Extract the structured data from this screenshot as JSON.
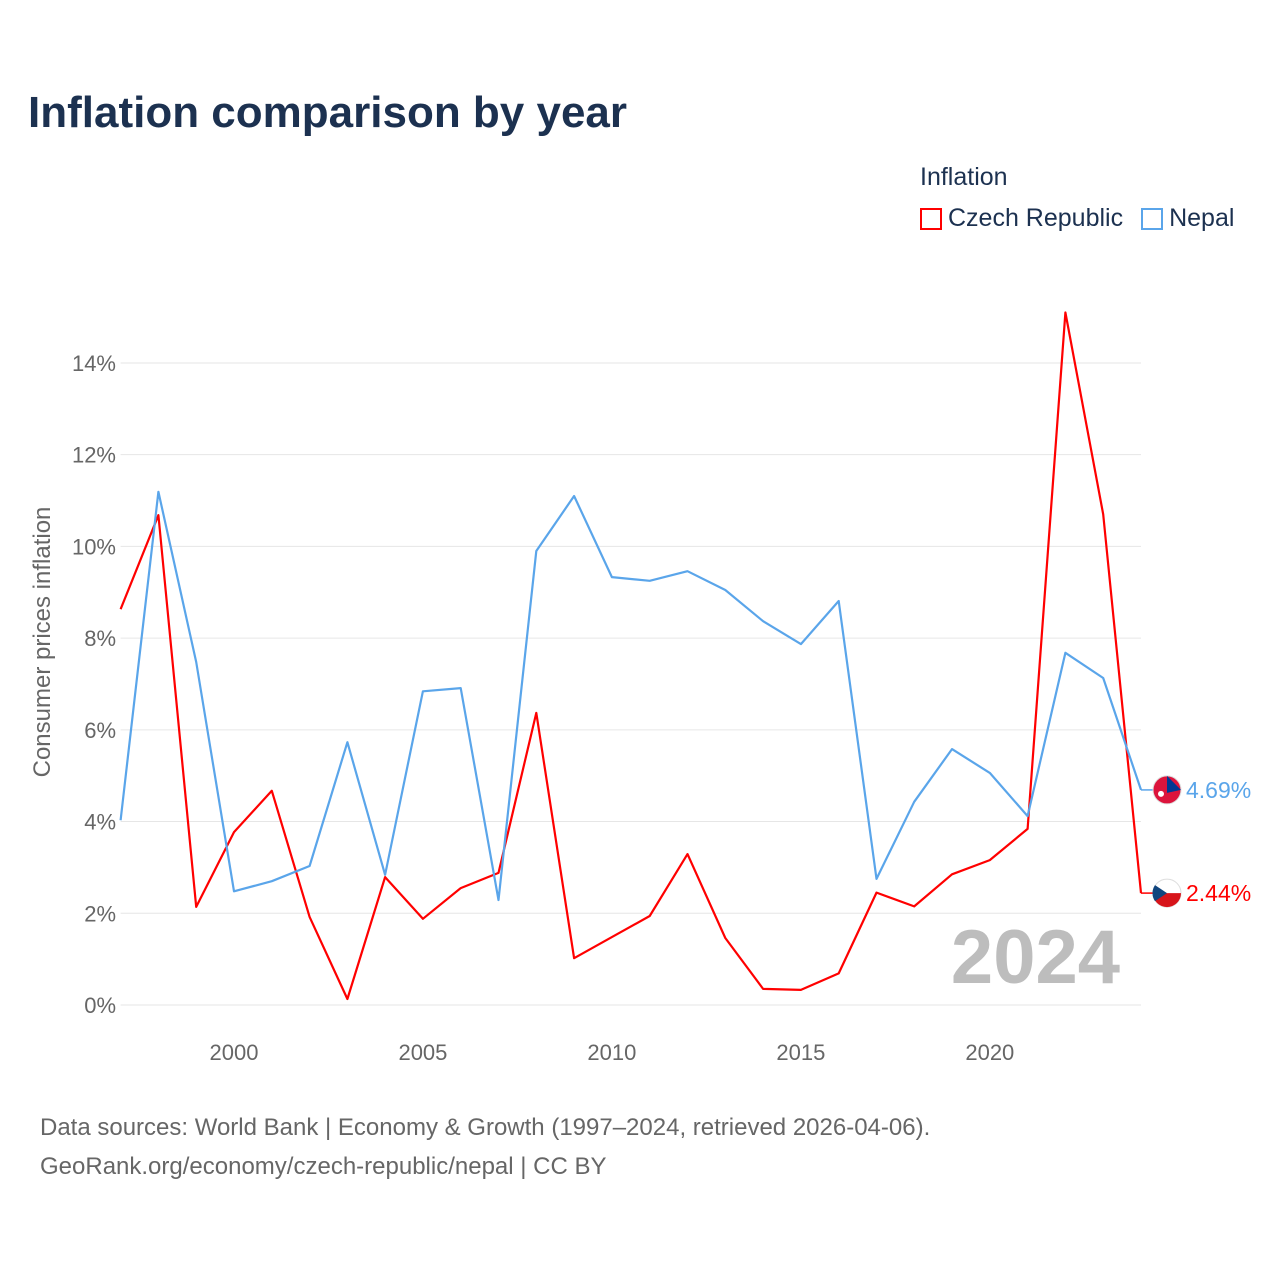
{
  "title": "Inflation comparison by year",
  "legend": {
    "title": "Inflation",
    "items": [
      {
        "label": "Czech Republic",
        "color": "#ff0000"
      },
      {
        "label": "Nepal",
        "color": "#5aa5ea"
      }
    ]
  },
  "footer": {
    "line1": "Data sources: World Bank | Economy & Growth (1997–2024, retrieved 2026-04-06).",
    "line2": "GeoRank.org/economy/czech-republic/nepal | CC BY"
  },
  "chart_data": {
    "type": "line",
    "title": "Inflation comparison by year",
    "xlabel": "",
    "ylabel": "Consumer prices inflation",
    "xlim": [
      1997,
      2024
    ],
    "ylim": [
      0,
      15.5
    ],
    "x_ticks": [
      {
        "value": 2000,
        "label": "2000"
      },
      {
        "value": 2005,
        "label": "2005"
      },
      {
        "value": 2010,
        "label": "2010"
      },
      {
        "value": 2015,
        "label": "2015"
      },
      {
        "value": 2020,
        "label": "2020"
      }
    ],
    "y_ticks": [
      {
        "value": 0,
        "label": "0%"
      },
      {
        "value": 2,
        "label": "2%"
      },
      {
        "value": 4,
        "label": "4%"
      },
      {
        "value": 6,
        "label": "6%"
      },
      {
        "value": 8,
        "label": "8%"
      },
      {
        "value": 10,
        "label": "10%"
      },
      {
        "value": 12,
        "label": "12%"
      },
      {
        "value": 14,
        "label": "14%"
      }
    ],
    "grid": true,
    "legend_position": "top-right",
    "year_watermark": "2024",
    "x": [
      1997,
      1998,
      1999,
      2000,
      2001,
      2002,
      2003,
      2004,
      2005,
      2006,
      2007,
      2008,
      2009,
      2010,
      2011,
      2012,
      2013,
      2014,
      2015,
      2016,
      2017,
      2018,
      2019,
      2020,
      2021,
      2022,
      2023,
      2024
    ],
    "series": [
      {
        "name": "Czech Republic",
        "color": "#ff0000",
        "end_label": "2.44%",
        "values": [
          8.63,
          10.68,
          2.14,
          3.77,
          4.67,
          1.92,
          0.13,
          2.79,
          1.88,
          2.55,
          2.88,
          6.37,
          1.02,
          1.48,
          1.94,
          3.29,
          1.46,
          0.35,
          0.33,
          0.69,
          2.45,
          2.15,
          2.85,
          3.16,
          3.84,
          15.1,
          10.7,
          2.44
        ]
      },
      {
        "name": "Nepal",
        "color": "#5aa5ea",
        "end_label": "4.69%",
        "values": [
          4.03,
          11.19,
          7.48,
          2.48,
          2.7,
          3.03,
          5.73,
          2.84,
          6.84,
          6.91,
          2.29,
          9.9,
          11.1,
          9.33,
          9.25,
          9.46,
          9.05,
          8.37,
          7.87,
          8.81,
          2.75,
          4.43,
          5.58,
          5.06,
          4.12,
          7.68,
          7.13,
          4.69
        ]
      }
    ]
  }
}
